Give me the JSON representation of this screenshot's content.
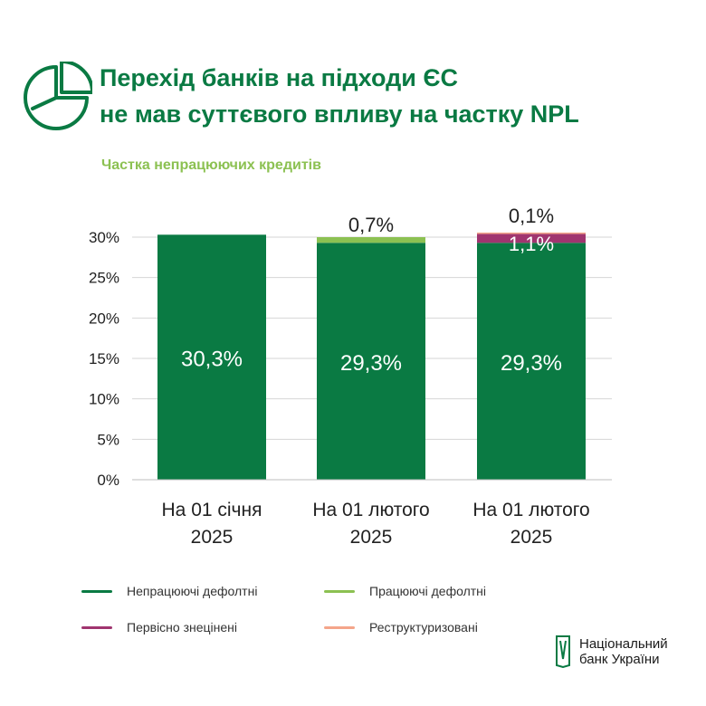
{
  "header": {
    "title_line1": "Перехід банків на підходи ЄС",
    "title_line2": "не мав суттєвого впливу на частку NPL",
    "subtitle": "Частка непрацюючих кредитів",
    "accent_color": "#0a7a43",
    "icon": "pie-chart-icon"
  },
  "chart_data": {
    "type": "bar",
    "stacked": true,
    "categories": [
      [
        "На 01 січня",
        "2025"
      ],
      [
        "На 01 лютого",
        "2025"
      ],
      [
        "На 01 лютого",
        "2025"
      ]
    ],
    "ylim": [
      0,
      30
    ],
    "yticks": [
      "0%",
      "5%",
      "10%",
      "15%",
      "20%",
      "25%",
      "30%"
    ],
    "grid": true,
    "series": [
      {
        "name": "Непрацюючі дефолтні",
        "color": "#0a7a43",
        "values": [
          30.3,
          29.3,
          29.3
        ],
        "labels": [
          "30,3%",
          "29,3%",
          "29,3%"
        ]
      },
      {
        "name": "Працюючі дефолтні",
        "color": "#8cc152",
        "values": [
          0,
          0.7,
          0
        ],
        "labels": [
          "",
          "0,7%",
          ""
        ]
      },
      {
        "name": "Первісно знецінені",
        "color": "#a0356f",
        "values": [
          0,
          0,
          1.1
        ],
        "labels": [
          "",
          "",
          "1,1%"
        ]
      },
      {
        "name": "Реструктуризовані",
        "color": "#f4a58a",
        "values": [
          0,
          0,
          0.1
        ],
        "labels": [
          "",
          "",
          "0,1%"
        ]
      }
    ]
  },
  "logo": {
    "line1": "Національний",
    "line2": "банк України"
  }
}
